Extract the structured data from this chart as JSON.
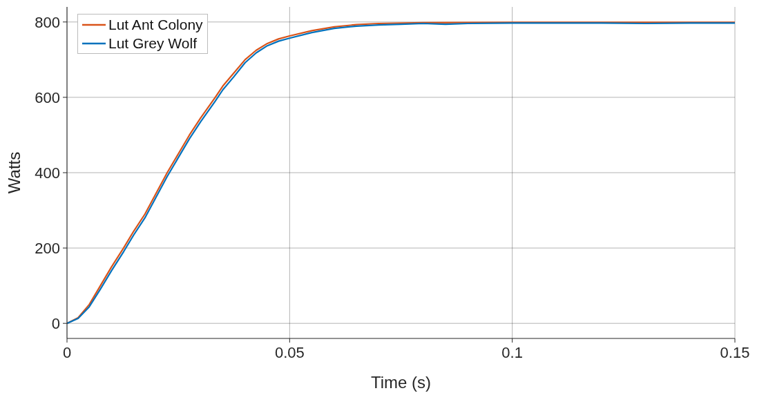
{
  "chart_data": {
    "type": "line",
    "xlabel": "Time (s)",
    "ylabel": "Watts",
    "xlim": [
      0,
      0.15
    ],
    "xticks": [
      0,
      0.05,
      0.1,
      0.15
    ],
    "ylim": [
      -40,
      840
    ],
    "yticks": [
      0,
      200,
      400,
      600,
      800
    ],
    "grid": true,
    "legend": "top left",
    "marker": "none",
    "line_style": "solid",
    "series": [
      {
        "name": "Lut Ant Colony",
        "color": "#d95319",
        "x": [
          0,
          0.0025,
          0.005,
          0.0075,
          0.01,
          0.0127,
          0.015,
          0.0175,
          0.02,
          0.0225,
          0.025,
          0.0275,
          0.03,
          0.0333,
          0.035,
          0.0375,
          0.04,
          0.0425,
          0.045,
          0.0475,
          0.05,
          0.055,
          0.06,
          0.065,
          0.07,
          0.08,
          0.1,
          0.15
        ],
        "values": [
          0,
          15,
          50,
          100,
          150,
          200,
          245,
          290,
          345,
          400,
          450,
          500,
          545,
          600,
          630,
          665,
          700,
          725,
          743,
          755,
          763,
          777,
          787,
          793,
          796,
          798,
          799,
          799
        ]
      },
      {
        "name": "Lut Grey Wolf",
        "color": "#0072bd",
        "x": [
          0,
          0.0025,
          0.005,
          0.0075,
          0.01,
          0.0127,
          0.015,
          0.0175,
          0.02,
          0.0225,
          0.025,
          0.0275,
          0.03,
          0.0333,
          0.035,
          0.0375,
          0.04,
          0.0425,
          0.045,
          0.0475,
          0.05,
          0.055,
          0.06,
          0.065,
          0.07,
          0.075,
          0.08,
          0.085,
          0.09,
          0.1,
          0.12,
          0.13,
          0.14,
          0.15
        ],
        "values": [
          0,
          13,
          44,
          91,
          140,
          190,
          235,
          280,
          335,
          390,
          440,
          490,
          535,
          590,
          620,
          655,
          692,
          718,
          737,
          749,
          757,
          772,
          783,
          789,
          792,
          794,
          796,
          794,
          796,
          797,
          797,
          796,
          797,
          797
        ]
      }
    ]
  }
}
